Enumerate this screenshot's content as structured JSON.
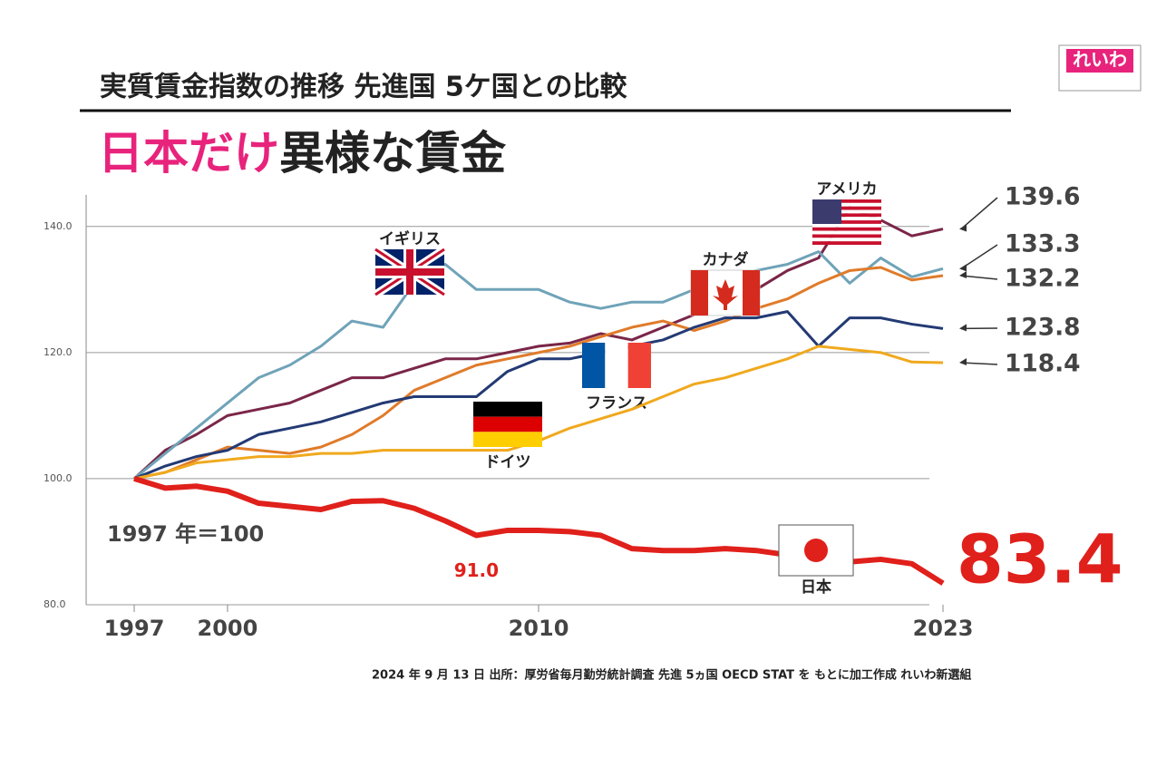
{
  "chart_data": {
    "type": "line",
    "subtitle": "実質賃金指数の推移 先進国 5ケ国との比較",
    "title_parts": [
      "日本だけ",
      "異様な賃金"
    ],
    "annotation": "1997 年＝100",
    "source": "2024 年 9 月 13 日  出所：厚労省毎月勤労統計調査  先進 5ヵ国 OECD STAT を もとに加工作成  れいわ新選組",
    "logo": "れいわ",
    "x": [
      1997,
      1998,
      1999,
      2000,
      2001,
      2002,
      2003,
      2004,
      2005,
      2006,
      2007,
      2008,
      2009,
      2010,
      2011,
      2012,
      2013,
      2014,
      2015,
      2016,
      2017,
      2018,
      2019,
      2020,
      2021,
      2022,
      2023
    ],
    "xlim": [
      1997,
      2023
    ],
    "xticks": [
      1997,
      2000,
      2010,
      2023
    ],
    "ylim": [
      80,
      145
    ],
    "yticks": [
      {
        "value": 80,
        "label": "80.0"
      },
      {
        "value": 100,
        "label": "100.0"
      },
      {
        "value": 120,
        "label": "120.0"
      },
      {
        "value": 140,
        "label": "140.0"
      }
    ],
    "grid": true,
    "series": [
      {
        "name": "アメリカ",
        "color": "#7a2648",
        "values": [
          100,
          104.5,
          107,
          110,
          111,
          112,
          114,
          116,
          116,
          117.5,
          119,
          119,
          120,
          121,
          121.5,
          123,
          122,
          124,
          126,
          128.5,
          130,
          133,
          135,
          143,
          141,
          138.5,
          139.6
        ]
      },
      {
        "name": "イギリス",
        "color": "#6fa3b8",
        "values": [
          100,
          104,
          108,
          112,
          116,
          118,
          121,
          125,
          124,
          131,
          134,
          130,
          130,
          130,
          128,
          127,
          128,
          128,
          130,
          132,
          133,
          134,
          136,
          131,
          135,
          132,
          133.3
        ]
      },
      {
        "name": "カナダ",
        "color": "#e07b2a",
        "values": [
          100,
          101,
          103,
          105,
          104.5,
          104,
          105,
          107,
          110,
          114,
          116,
          118,
          119,
          120,
          121,
          122.5,
          124,
          125,
          123.5,
          125,
          127,
          128.5,
          131,
          133,
          133.5,
          131.5,
          132.2
        ]
      },
      {
        "name": "フランス",
        "color": "#233a74",
        "values": [
          100,
          102,
          103.5,
          104.5,
          107,
          108,
          109,
          110.5,
          112,
          113,
          113,
          113,
          117,
          119,
          119,
          120,
          121,
          122,
          124,
          125.5,
          125.5,
          126.5,
          121,
          125.5,
          125.5,
          124.5,
          123.8
        ]
      },
      {
        "name": "ドイツ",
        "color": "#f0a91e",
        "values": [
          100,
          101,
          102.5,
          103,
          103.5,
          103.5,
          104,
          104,
          104.5,
          104.5,
          104.5,
          104.5,
          104.5,
          106,
          108,
          109.5,
          111,
          113,
          115,
          116,
          117.5,
          119,
          121,
          120.5,
          120,
          118.5,
          118.4
        ]
      },
      {
        "name": "日本",
        "color": "#e0201b",
        "values": [
          100,
          98.5,
          98.8,
          98,
          96.1,
          95.6,
          95.1,
          96.4,
          96.5,
          95.3,
          93.3,
          91,
          91.8,
          91.8,
          91.6,
          91,
          88.9,
          88.6,
          88.6,
          88.9,
          88.6,
          87.9,
          86.9,
          86.8,
          87.2,
          86.5,
          83.4
        ],
        "value_labels": [
          null,
          null,
          null,
          null,
          null,
          null,
          null,
          null,
          null,
          null,
          null,
          "91.0",
          null,
          null,
          null,
          null,
          null,
          null,
          null,
          null,
          null,
          null,
          null,
          null,
          null,
          null,
          null
        ]
      }
    ]
  }
}
